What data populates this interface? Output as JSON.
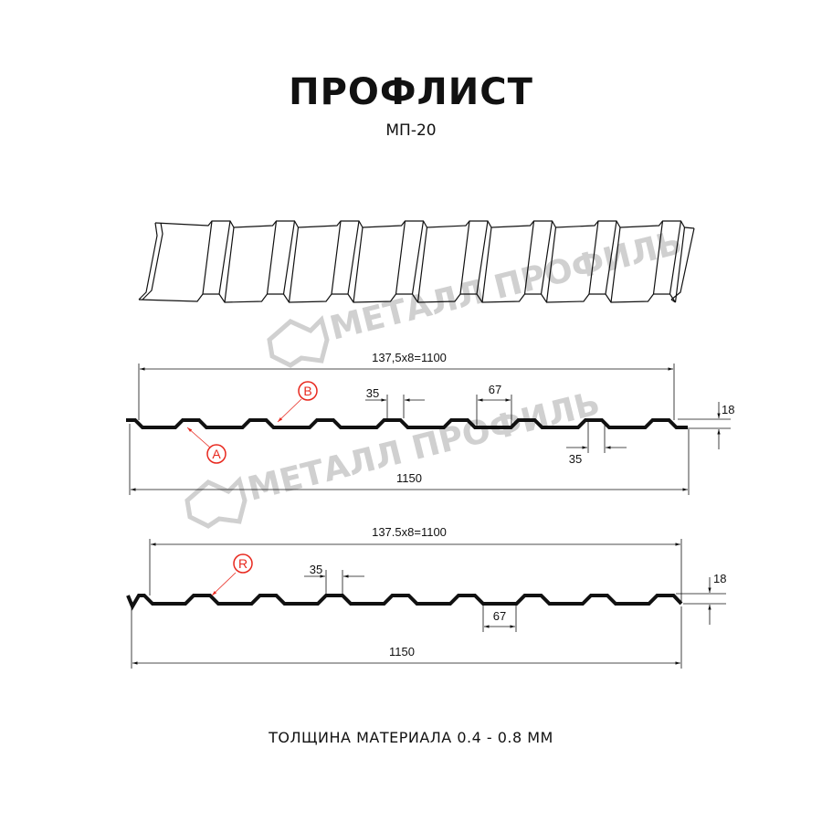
{
  "header": {
    "title": "ПРОФЛИСТ",
    "subtitle": "МП-20"
  },
  "watermark": {
    "text": "МЕТАЛЛ ПРОФИЛЬ"
  },
  "profile_a": {
    "dim_top": "137,5x8=1100",
    "dim_bottom": "1150",
    "dim_crest_top": "35",
    "dim_valley": "67",
    "dim_crest_bottom": "35",
    "dim_height": "18",
    "marker_a": "A",
    "marker_b": "B"
  },
  "profile_b": {
    "dim_top": "137.5x8=1100",
    "dim_bottom": "1150",
    "dim_crest": "35",
    "dim_valley": "67",
    "dim_height": "18",
    "marker_r": "R"
  },
  "footer": {
    "thickness": "ТОЛЩИНА МАТЕРИАЛА 0.4 - 0.8 ММ"
  },
  "colors": {
    "line": "#111111",
    "marker": "#e8281e",
    "watermark": "#d0d0d0"
  }
}
